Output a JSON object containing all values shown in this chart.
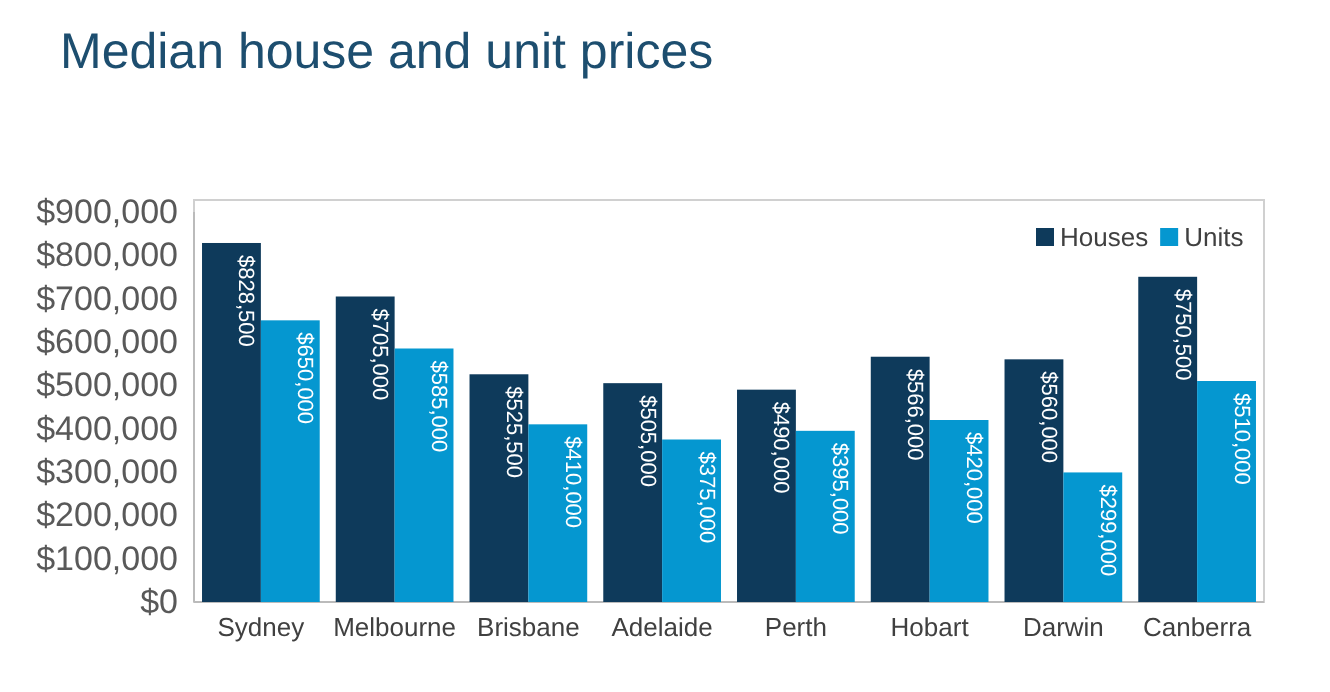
{
  "chart_data": {
    "type": "bar",
    "title": "Median house and unit prices",
    "categories": [
      "Sydney",
      "Melbourne",
      "Brisbane",
      "Adelaide",
      "Perth",
      "Hobart",
      "Darwin",
      "Canberra"
    ],
    "series": [
      {
        "name": "Houses",
        "color": "#0e3a5b",
        "values": [
          828500,
          705000,
          525500,
          505000,
          490000,
          566000,
          560000,
          750500
        ],
        "value_labels": [
          "$828,500",
          "$705,000",
          "$525,500",
          "$505,000",
          "$490,000",
          "$566,000",
          "$560,000",
          "$750,500"
        ]
      },
      {
        "name": "Units",
        "color": "#0597d0",
        "values": [
          650000,
          585000,
          410000,
          375000,
          395000,
          420000,
          299000,
          510000
        ],
        "value_labels": [
          "$650,000",
          "$585,000",
          "$410,000",
          "$375,000",
          "$395,000",
          "$420,000",
          "$299,000",
          "$510,000"
        ]
      }
    ],
    "ylim": [
      0,
      900000
    ],
    "yticks": [
      {
        "value": 0,
        "label": "$0"
      },
      {
        "value": 100000,
        "label": "$100,000"
      },
      {
        "value": 200000,
        "label": "$200,000"
      },
      {
        "value": 300000,
        "label": "$300,000"
      },
      {
        "value": 400000,
        "label": "$400,000"
      },
      {
        "value": 500000,
        "label": "$500,000"
      },
      {
        "value": 600000,
        "label": "$600,000"
      },
      {
        "value": 700000,
        "label": "$700,000"
      },
      {
        "value": 800000,
        "label": "$800,000"
      },
      {
        "value": 900000,
        "label": "$900,000"
      }
    ],
    "legend": "top right",
    "grid": false
  }
}
